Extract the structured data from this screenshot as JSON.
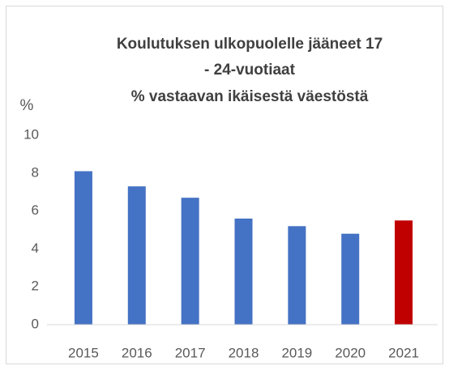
{
  "chart_data": {
    "type": "bar",
    "title": [
      "Koulutuksen ulkopuolelle jääneet 17",
      "- 24-vuotiaat",
      "% vastaavan ikäisestä väestöstä"
    ],
    "y_label": "%",
    "categories": [
      "2015",
      "2016",
      "2017",
      "2018",
      "2019",
      "2020",
      "2021"
    ],
    "values": [
      8.1,
      7.3,
      6.7,
      5.6,
      5.2,
      4.8,
      5.5
    ],
    "colors": [
      "#4472c4",
      "#4472c4",
      "#4472c4",
      "#4472c4",
      "#4472c4",
      "#4472c4",
      "#c00000"
    ],
    "ylim": [
      0,
      10
    ],
    "yticks": [
      0,
      2,
      4,
      6,
      8,
      10
    ],
    "grid": false
  }
}
